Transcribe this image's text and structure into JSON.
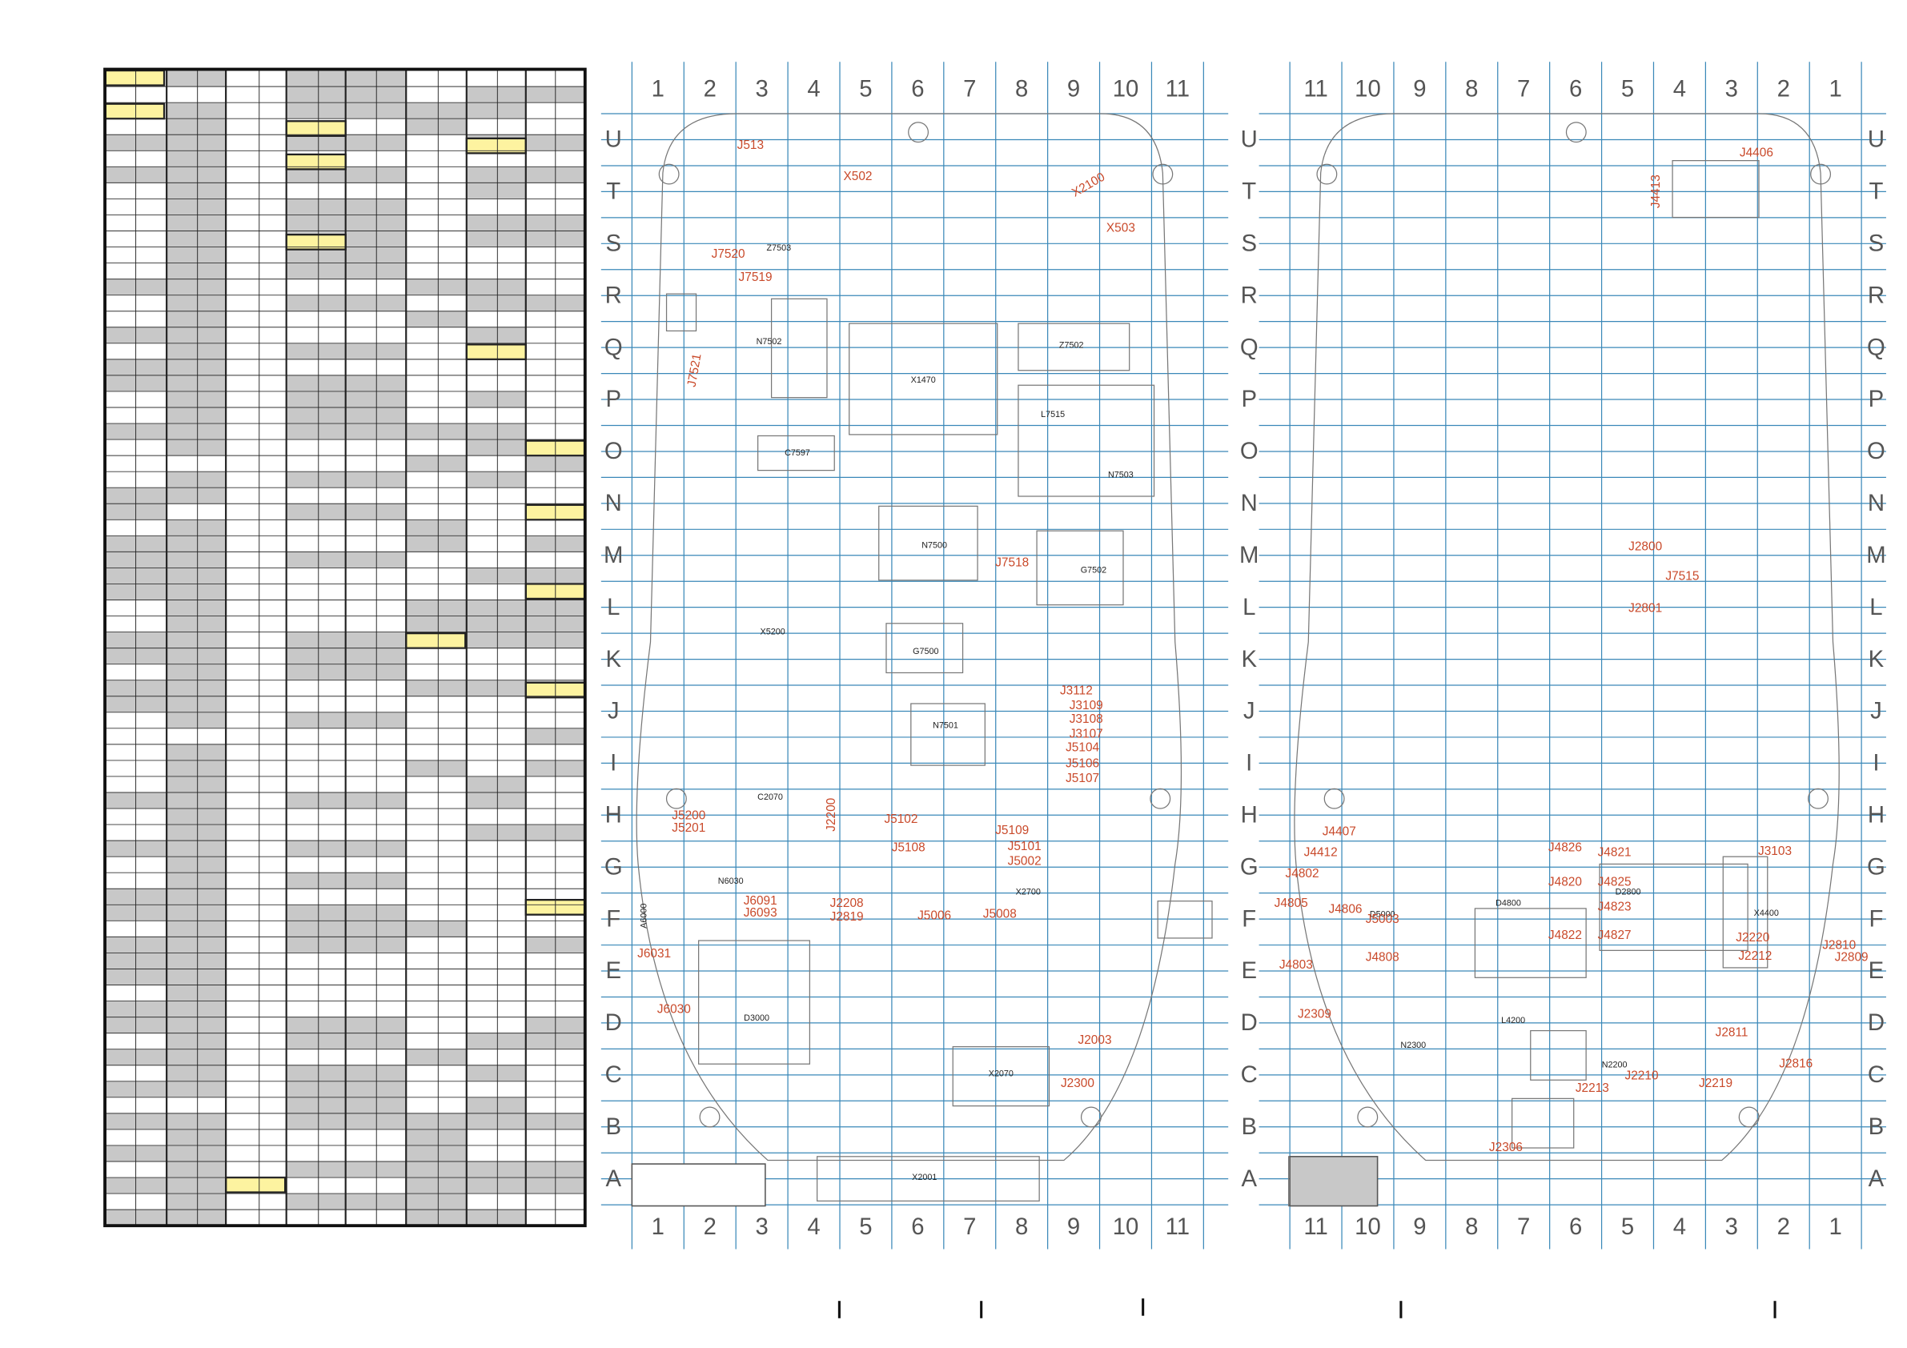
{
  "left_grid": {
    "columns": [
      "1",
      "2",
      "3",
      "4",
      "5",
      "6",
      "7",
      "8",
      "9",
      "10",
      "11"
    ],
    "rows": [
      "U",
      "T",
      "S",
      "R",
      "Q",
      "P",
      "O",
      "N",
      "M",
      "L",
      "K",
      "J",
      "I",
      "H",
      "G",
      "F",
      "E",
      "D",
      "C",
      "B",
      "A"
    ]
  },
  "right_grid": {
    "columns": [
      "11",
      "10",
      "9",
      "8",
      "7",
      "6",
      "5",
      "4",
      "3",
      "2",
      "1"
    ]
  },
  "board_a": {
    "labels": [
      "J513",
      "X502",
      "X2100",
      "X503",
      "J7520",
      "J7519",
      "J7521",
      "N7502",
      "X1470",
      "L7515",
      "Z7502",
      "N7503",
      "N7500",
      "G7502",
      "J7518",
      "G7500",
      "N7501",
      "X5200",
      "J3112",
      "J3109",
      "J3108",
      "J3107",
      "J5104",
      "J5106",
      "J5107",
      "J5102",
      "J5109",
      "J5101",
      "J5108",
      "J5002",
      "X2700",
      "J2208",
      "J2819",
      "J5006",
      "J5008",
      "J6091",
      "J6093",
      "J6031",
      "J6030",
      "J2200",
      "D3000",
      "J2003",
      "J2300",
      "X2070",
      "X2001",
      "J5200",
      "J5201",
      "C2070",
      "N6030",
      "A6000",
      "C7597",
      "Z7503"
    ]
  },
  "board_b": {
    "labels": [
      "J2800",
      "J7515",
      "J2801",
      "J4407",
      "J4412",
      "J4802",
      "J4805",
      "J4806",
      "J4808",
      "J4803",
      "J2309",
      "J4826",
      "J4821",
      "J4820",
      "J4825",
      "J4823",
      "J4822",
      "J4827",
      "J3103",
      "J2220",
      "J2212",
      "J2810",
      "J2809",
      "J2811",
      "J2816",
      "J2210",
      "J2213",
      "J2219",
      "J2306",
      "J4406",
      "J4413",
      "D5000",
      "D4800",
      "D2800",
      "L4200",
      "N2300",
      "N2200",
      "X4400",
      "J5003"
    ]
  }
}
